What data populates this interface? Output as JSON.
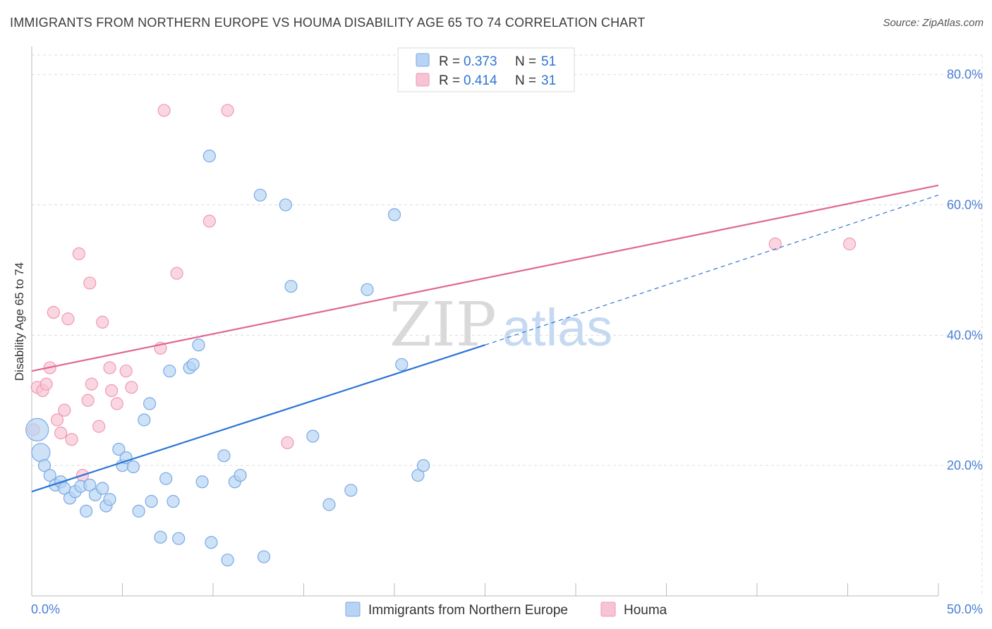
{
  "title": "IMMIGRANTS FROM NORTHERN EUROPE VS HOUMA DISABILITY AGE 65 TO 74 CORRELATION CHART",
  "source": "Source: ZipAtlas.com",
  "watermark": {
    "zip": "ZIP",
    "atlas": "atlas"
  },
  "colors": {
    "blue_fill": "#b8d4f4",
    "blue_stroke": "#7aaae6",
    "blue_line": "#2b75d6",
    "pink_fill": "#f8c4d4",
    "pink_stroke": "#ee9ab4",
    "pink_line": "#e06890",
    "tick_text": "#4a7fd6",
    "grid": "#dddddd"
  },
  "legend": {
    "r_label": "R =",
    "n_label": "N =",
    "rows": [
      {
        "r": "0.373",
        "n": "51",
        "series": "blue"
      },
      {
        "r": "0.414",
        "n": "31",
        "series": "pink"
      }
    ]
  },
  "bottom_legend": [
    {
      "label": "Immigrants from Northern Europe",
      "series": "blue"
    },
    {
      "label": "Houma",
      "series": "pink"
    }
  ],
  "chart_data": {
    "type": "scatter",
    "title": "IMMIGRANTS FROM NORTHERN EUROPE VS HOUMA DISABILITY AGE 65 TO 74 CORRELATION CHART",
    "xlabel": "",
    "ylabel": "Disability Age 65 to 74",
    "xlim": [
      0,
      50
    ],
    "ylim": [
      0,
      83
    ],
    "x_tick_labels": [
      "0.0%",
      "50.0%"
    ],
    "y_ticks": [
      20,
      40,
      60,
      80
    ],
    "y_tick_labels": [
      "20.0%",
      "40.0%",
      "60.0%",
      "80.0%"
    ],
    "grid": true,
    "legend_position": "top-center",
    "series": [
      {
        "name": "Immigrants from Northern Europe",
        "color": "#7aaae6",
        "r": 0.373,
        "n": 51,
        "trend": {
          "x0": 0,
          "y0": 16.0,
          "x1": 25,
          "y1": 38.5,
          "dashed_to_x": 50,
          "dashed_to_y": 61.5
        },
        "points": [
          {
            "x": 0.3,
            "y": 25.5,
            "size": "large"
          },
          {
            "x": 0.5,
            "y": 22.0,
            "size": "medium"
          },
          {
            "x": 0.7,
            "y": 20.0
          },
          {
            "x": 1.0,
            "y": 18.5
          },
          {
            "x": 1.3,
            "y": 17.0
          },
          {
            "x": 1.6,
            "y": 17.5
          },
          {
            "x": 1.8,
            "y": 16.5
          },
          {
            "x": 2.1,
            "y": 15.0
          },
          {
            "x": 2.4,
            "y": 16.0
          },
          {
            "x": 2.7,
            "y": 16.8
          },
          {
            "x": 3.0,
            "y": 13.0
          },
          {
            "x": 3.2,
            "y": 17.0
          },
          {
            "x": 3.5,
            "y": 15.5
          },
          {
            "x": 3.9,
            "y": 16.5
          },
          {
            "x": 4.1,
            "y": 13.8
          },
          {
            "x": 4.3,
            "y": 14.8
          },
          {
            "x": 4.8,
            "y": 22.5
          },
          {
            "x": 5.0,
            "y": 20.0
          },
          {
            "x": 5.2,
            "y": 21.2
          },
          {
            "x": 5.6,
            "y": 19.8
          },
          {
            "x": 5.9,
            "y": 13.0
          },
          {
            "x": 6.2,
            "y": 27.0
          },
          {
            "x": 6.5,
            "y": 29.5
          },
          {
            "x": 6.6,
            "y": 14.5
          },
          {
            "x": 7.1,
            "y": 9.0
          },
          {
            "x": 7.4,
            "y": 18.0
          },
          {
            "x": 7.6,
            "y": 34.5
          },
          {
            "x": 7.8,
            "y": 14.5
          },
          {
            "x": 8.1,
            "y": 8.8
          },
          {
            "x": 8.7,
            "y": 35.0
          },
          {
            "x": 8.9,
            "y": 35.5
          },
          {
            "x": 9.2,
            "y": 38.5
          },
          {
            "x": 9.4,
            "y": 17.5
          },
          {
            "x": 9.8,
            "y": 67.5
          },
          {
            "x": 9.9,
            "y": 8.2
          },
          {
            "x": 10.6,
            "y": 21.5
          },
          {
            "x": 10.8,
            "y": 5.5
          },
          {
            "x": 11.2,
            "y": 17.5
          },
          {
            "x": 11.5,
            "y": 18.5
          },
          {
            "x": 12.6,
            "y": 61.5
          },
          {
            "x": 12.8,
            "y": 6.0
          },
          {
            "x": 14.0,
            "y": 60.0
          },
          {
            "x": 14.3,
            "y": 47.5
          },
          {
            "x": 15.5,
            "y": 24.5
          },
          {
            "x": 16.4,
            "y": 14.0
          },
          {
            "x": 17.6,
            "y": 16.2
          },
          {
            "x": 18.5,
            "y": 47.0
          },
          {
            "x": 20.0,
            "y": 58.5
          },
          {
            "x": 20.4,
            "y": 35.5
          },
          {
            "x": 21.3,
            "y": 18.5
          },
          {
            "x": 21.6,
            "y": 20.0
          }
        ]
      },
      {
        "name": "Houma",
        "color": "#ee9ab4",
        "r": 0.414,
        "n": 31,
        "trend": {
          "x0": 0,
          "y0": 34.5,
          "x1": 50,
          "y1": 63.0
        },
        "points": [
          {
            "x": 0.1,
            "y": 25.5
          },
          {
            "x": 0.3,
            "y": 32.0
          },
          {
            "x": 0.6,
            "y": 31.5
          },
          {
            "x": 0.8,
            "y": 32.5
          },
          {
            "x": 1.0,
            "y": 35.0
          },
          {
            "x": 1.2,
            "y": 43.5
          },
          {
            "x": 1.4,
            "y": 27.0
          },
          {
            "x": 1.6,
            "y": 25.0
          },
          {
            "x": 1.8,
            "y": 28.5
          },
          {
            "x": 2.0,
            "y": 42.5
          },
          {
            "x": 2.2,
            "y": 24.0
          },
          {
            "x": 2.6,
            "y": 52.5
          },
          {
            "x": 2.8,
            "y": 18.5
          },
          {
            "x": 3.1,
            "y": 30.0
          },
          {
            "x": 3.2,
            "y": 48.0
          },
          {
            "x": 3.3,
            "y": 32.5
          },
          {
            "x": 3.7,
            "y": 26.0
          },
          {
            "x": 3.9,
            "y": 42.0
          },
          {
            "x": 4.3,
            "y": 35.0
          },
          {
            "x": 4.4,
            "y": 31.5
          },
          {
            "x": 4.7,
            "y": 29.5
          },
          {
            "x": 5.2,
            "y": 34.5
          },
          {
            "x": 5.5,
            "y": 32.0
          },
          {
            "x": 7.1,
            "y": 38.0
          },
          {
            "x": 7.3,
            "y": 74.5
          },
          {
            "x": 8.0,
            "y": 49.5
          },
          {
            "x": 9.8,
            "y": 57.5
          },
          {
            "x": 10.8,
            "y": 74.5
          },
          {
            "x": 14.1,
            "y": 23.5
          },
          {
            "x": 41.0,
            "y": 54.0
          },
          {
            "x": 45.1,
            "y": 54.0
          }
        ]
      }
    ]
  }
}
